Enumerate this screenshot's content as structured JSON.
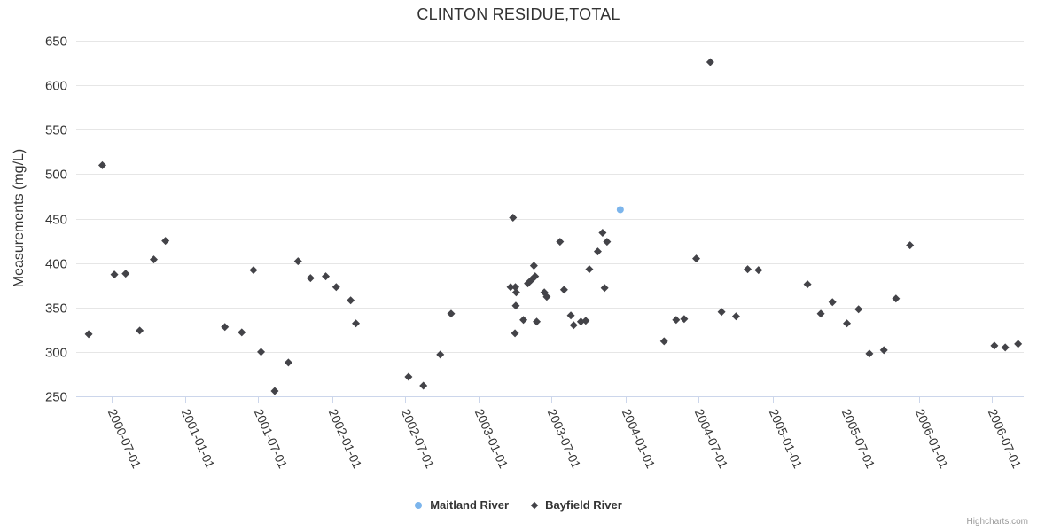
{
  "credits": "Highcharts.com",
  "colors": {
    "background": "#ffffff",
    "text": "#333333",
    "grid": "#e6e6e6",
    "axis_line": "#ccd6eb",
    "credits_text": "#999999",
    "maitland_blue": "#7cb5ec",
    "bayfield_dark": "#434348"
  },
  "chart_data": {
    "type": "scatter",
    "title": "CLINTON RESIDUE,TOTAL",
    "xlabel": "",
    "ylabel": "Measurements (mg/L)",
    "ylim": [
      250,
      650
    ],
    "ytick_step": 50,
    "grid": true,
    "legend_position": "bottom-center",
    "x_range": [
      "2000-04-04",
      "2006-09-18"
    ],
    "x_ticks": [
      "2000-07-01",
      "2001-01-01",
      "2001-07-01",
      "2002-01-01",
      "2002-07-01",
      "2003-01-01",
      "2003-07-01",
      "2004-01-01",
      "2004-07-01",
      "2005-01-01",
      "2005-07-01",
      "2006-01-01",
      "2006-07-01"
    ],
    "series": [
      {
        "name": "Maitland River",
        "marker": "circle",
        "color": "#7cb5ec",
        "points": [
          {
            "x": "2003-12-19",
            "y": 460
          }
        ]
      },
      {
        "name": "Bayfield River",
        "marker": "diamond",
        "color": "#434348",
        "points": [
          {
            "x": "2000-05-05",
            "y": 320
          },
          {
            "x": "2000-06-08",
            "y": 510
          },
          {
            "x": "2000-07-08",
            "y": 387
          },
          {
            "x": "2000-08-05",
            "y": 388
          },
          {
            "x": "2000-09-09",
            "y": 324
          },
          {
            "x": "2000-10-14",
            "y": 404
          },
          {
            "x": "2000-11-12",
            "y": 425
          },
          {
            "x": "2001-04-09",
            "y": 328
          },
          {
            "x": "2001-05-21",
            "y": 322
          },
          {
            "x": "2001-06-19",
            "y": 392
          },
          {
            "x": "2001-07-08",
            "y": 300
          },
          {
            "x": "2001-08-11",
            "y": 256
          },
          {
            "x": "2001-09-14",
            "y": 288
          },
          {
            "x": "2001-10-08",
            "y": 402
          },
          {
            "x": "2001-11-08",
            "y": 383
          },
          {
            "x": "2001-12-16",
            "y": 385
          },
          {
            "x": "2002-01-11",
            "y": 373
          },
          {
            "x": "2002-02-16",
            "y": 358
          },
          {
            "x": "2002-03-01",
            "y": 332
          },
          {
            "x": "2002-07-10",
            "y": 272
          },
          {
            "x": "2002-08-16",
            "y": 262
          },
          {
            "x": "2002-09-27",
            "y": 297
          },
          {
            "x": "2002-10-24",
            "y": 343
          },
          {
            "x": "2003-03-21",
            "y": 373
          },
          {
            "x": "2003-03-27",
            "y": 451
          },
          {
            "x": "2003-04-01",
            "y": 321
          },
          {
            "x": "2003-04-02",
            "y": 373
          },
          {
            "x": "2003-04-03",
            "y": 352
          },
          {
            "x": "2003-04-04",
            "y": 367
          },
          {
            "x": "2003-04-22",
            "y": 336
          },
          {
            "x": "2003-05-03",
            "y": 377
          },
          {
            "x": "2003-05-12",
            "y": 381
          },
          {
            "x": "2003-05-18",
            "y": 397
          },
          {
            "x": "2003-05-21",
            "y": 385
          },
          {
            "x": "2003-05-25",
            "y": 334
          },
          {
            "x": "2003-06-13",
            "y": 367
          },
          {
            "x": "2003-06-19",
            "y": 362
          },
          {
            "x": "2003-07-22",
            "y": 424
          },
          {
            "x": "2003-08-01",
            "y": 370
          },
          {
            "x": "2003-08-18",
            "y": 341
          },
          {
            "x": "2003-08-25",
            "y": 330
          },
          {
            "x": "2003-09-12",
            "y": 334
          },
          {
            "x": "2003-09-24",
            "y": 335
          },
          {
            "x": "2003-10-03",
            "y": 393
          },
          {
            "x": "2003-10-24",
            "y": 413
          },
          {
            "x": "2003-11-05",
            "y": 434
          },
          {
            "x": "2003-11-10",
            "y": 372
          },
          {
            "x": "2003-11-16",
            "y": 424
          },
          {
            "x": "2004-04-06",
            "y": 312
          },
          {
            "x": "2004-05-06",
            "y": 336
          },
          {
            "x": "2004-05-26",
            "y": 337
          },
          {
            "x": "2004-06-25",
            "y": 405
          },
          {
            "x": "2004-07-30",
            "y": 626
          },
          {
            "x": "2004-08-27",
            "y": 345
          },
          {
            "x": "2004-10-02",
            "y": 340
          },
          {
            "x": "2004-10-31",
            "y": 393
          },
          {
            "x": "2004-11-27",
            "y": 392
          },
          {
            "x": "2005-03-29",
            "y": 376
          },
          {
            "x": "2005-05-01",
            "y": 343
          },
          {
            "x": "2005-05-30",
            "y": 356
          },
          {
            "x": "2005-07-05",
            "y": 332
          },
          {
            "x": "2005-08-03",
            "y": 348
          },
          {
            "x": "2005-08-30",
            "y": 298
          },
          {
            "x": "2005-10-05",
            "y": 302
          },
          {
            "x": "2005-11-04",
            "y": 360
          },
          {
            "x": "2005-12-09",
            "y": 420
          },
          {
            "x": "2006-07-07",
            "y": 307
          },
          {
            "x": "2006-08-03",
            "y": 305
          },
          {
            "x": "2006-09-04",
            "y": 309
          }
        ]
      }
    ]
  }
}
